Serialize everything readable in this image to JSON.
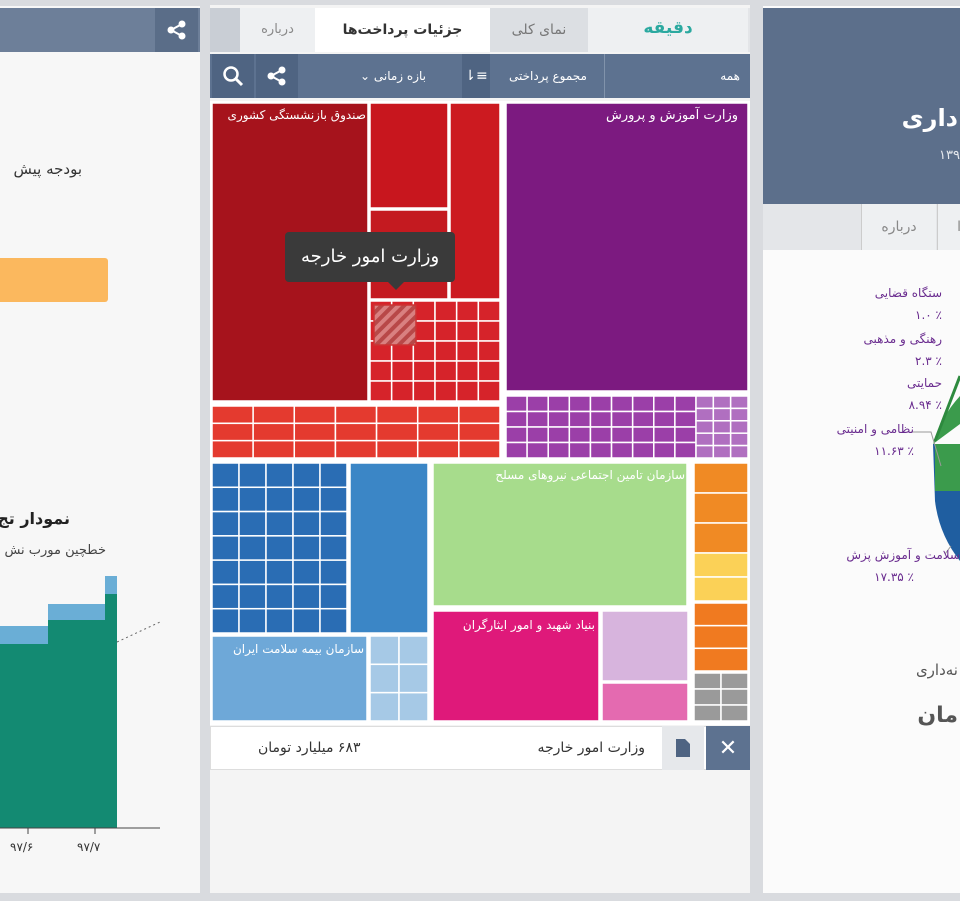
{
  "left_panel": {
    "budget_label": "بودجه پیش",
    "chart_title": "نمودار تج",
    "chart_note": "خطچین مورب نش",
    "x_labels": [
      "۹۷/۶",
      "۹۷/۷"
    ]
  },
  "middle_panel": {
    "logo": "دقیقه",
    "tabs": [
      "نمای کلی",
      "جزئیات پرداخت‌ها",
      "درباره"
    ],
    "toolbar": {
      "filter": "همه",
      "measure": "مجموع پرداختی",
      "period": "بازه زمانی"
    },
    "treemap_labels": [
      "وزارت آموزش و پرورش",
      "صندوق بازنشستگی کشوری",
      "سازمان تامین اجتماعی نیروهای مسلح",
      "بنیاد شهید و امور ایثارگران",
      "سازمان بیمه سلامت ایران"
    ],
    "tooltip": "وزارت امور خارجه",
    "footer": {
      "name": "وزارت امور خارجه",
      "amount": "۶۸۳ میلیارد تومان"
    }
  },
  "right_panel": {
    "title": "داری",
    "subtitle": "۱۳۹",
    "tabs": [
      "ا",
      "درباره"
    ],
    "legend": [
      {
        "label": "ستگاه قضایی",
        "value": "٪ ۱.۰"
      },
      {
        "label": "رهنگی و مذهبی",
        "value": "٪ ۲.۳"
      },
      {
        "label": "حمایتی",
        "value": "٪ ۸.۹۴"
      },
      {
        "label": "نظامی و امنیتی",
        "value": "٪ ۱۱.۶۳"
      },
      {
        "label": "سلامت و آموزش پزش",
        "value": "٪ ۱۷.۳۵"
      }
    ],
    "footer_label": "نه‌داری",
    "footer_value": "مان"
  }
}
